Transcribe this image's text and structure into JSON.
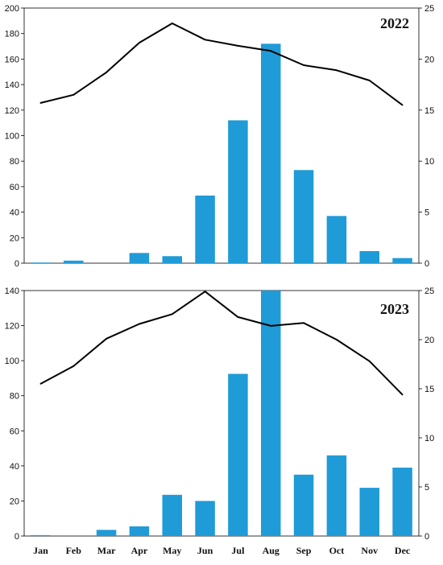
{
  "chart_data": [
    {
      "type": "bar+line",
      "title": "2022",
      "categories": [
        "Jan",
        "Feb",
        "Mar",
        "Apr",
        "May",
        "Jun",
        "Jul",
        "Aug",
        "Sep",
        "Oct",
        "Nov",
        "Dec"
      ],
      "show_month_labels": false,
      "bar_color": "#1f9bd7",
      "line_color": "#000000",
      "series": [
        {
          "kind": "bar",
          "axis": "left",
          "values": [
            0.5,
            2,
            0,
            8,
            5.5,
            53,
            112,
            172,
            73,
            37,
            9.5,
            4
          ]
        },
        {
          "kind": "line",
          "axis": "right",
          "values": [
            15.7,
            16.5,
            18.7,
            21.6,
            23.5,
            21.9,
            21.3,
            20.8,
            19.4,
            18.9,
            17.9,
            15.5
          ]
        }
      ],
      "left_axis": {
        "min": 0,
        "max": 200,
        "ticks": [
          0,
          20,
          40,
          60,
          80,
          100,
          120,
          140,
          160,
          180,
          200
        ]
      },
      "right_axis": {
        "min": 0,
        "max": 25,
        "ticks": [
          0,
          5,
          10,
          15,
          20,
          25
        ]
      }
    },
    {
      "type": "bar+line",
      "title": "2023",
      "categories": [
        "Jan",
        "Feb",
        "Mar",
        "Apr",
        "May",
        "Jun",
        "Jul",
        "Aug",
        "Sep",
        "Oct",
        "Nov",
        "Dec"
      ],
      "show_month_labels": true,
      "bar_color": "#1f9bd7",
      "line_color": "#000000",
      "series": [
        {
          "kind": "bar",
          "axis": "left",
          "values": [
            0.5,
            0,
            3.5,
            5.5,
            23.5,
            20,
            92.5,
            140,
            35,
            46,
            27.5,
            39
          ]
        },
        {
          "kind": "line",
          "axis": "right",
          "values": [
            15.5,
            17.3,
            20.1,
            21.6,
            22.6,
            24.9,
            22.3,
            21.4,
            21.7,
            20,
            17.8,
            14.4
          ]
        }
      ],
      "left_axis": {
        "min": 0,
        "max": 140,
        "ticks": [
          0,
          20,
          40,
          60,
          80,
          100,
          120,
          140
        ]
      },
      "right_axis": {
        "min": 0,
        "max": 25,
        "ticks": [
          0,
          5,
          10,
          15,
          20,
          25
        ]
      }
    }
  ]
}
